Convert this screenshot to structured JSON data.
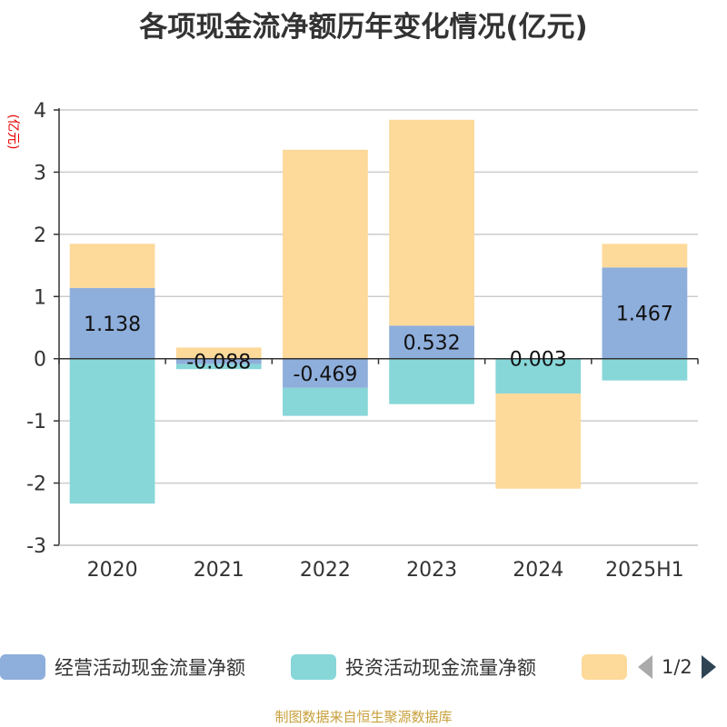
{
  "chart_data": {
    "type": "bar",
    "stacked": true,
    "title": "各项现金流净额历年变化情况(亿元)",
    "ylabel": "(亿元)",
    "categories": [
      "2020",
      "2021",
      "2022",
      "2023",
      "2024",
      "2025H1"
    ],
    "ylim": [
      -3,
      4
    ],
    "yticks": [
      4,
      3,
      2,
      1,
      0,
      -1,
      -2,
      -3
    ],
    "grid": true,
    "legend_position": "bottom",
    "series": [
      {
        "name": "经营活动现金流量净额",
        "color": "#8eaedb",
        "values": [
          1.138,
          -0.088,
          -0.469,
          0.532,
          0.003,
          1.467
        ],
        "labels": [
          "1.138",
          "-0.088",
          "-0.469",
          "0.532",
          "0.003",
          "1.467"
        ]
      },
      {
        "name": "投资活动现金流量净额",
        "color": "#87d6d8",
        "values": [
          -2.33,
          -0.08,
          -0.45,
          -0.73,
          -0.56,
          -0.35
        ]
      },
      {
        "name": "",
        "color": "#fdd99a",
        "values": [
          0.71,
          0.18,
          3.36,
          3.31,
          -1.53,
          0.38
        ]
      }
    ]
  },
  "legend": {
    "page_indicator": "1/2"
  },
  "source_note": "制图数据来自恒生聚源数据库"
}
